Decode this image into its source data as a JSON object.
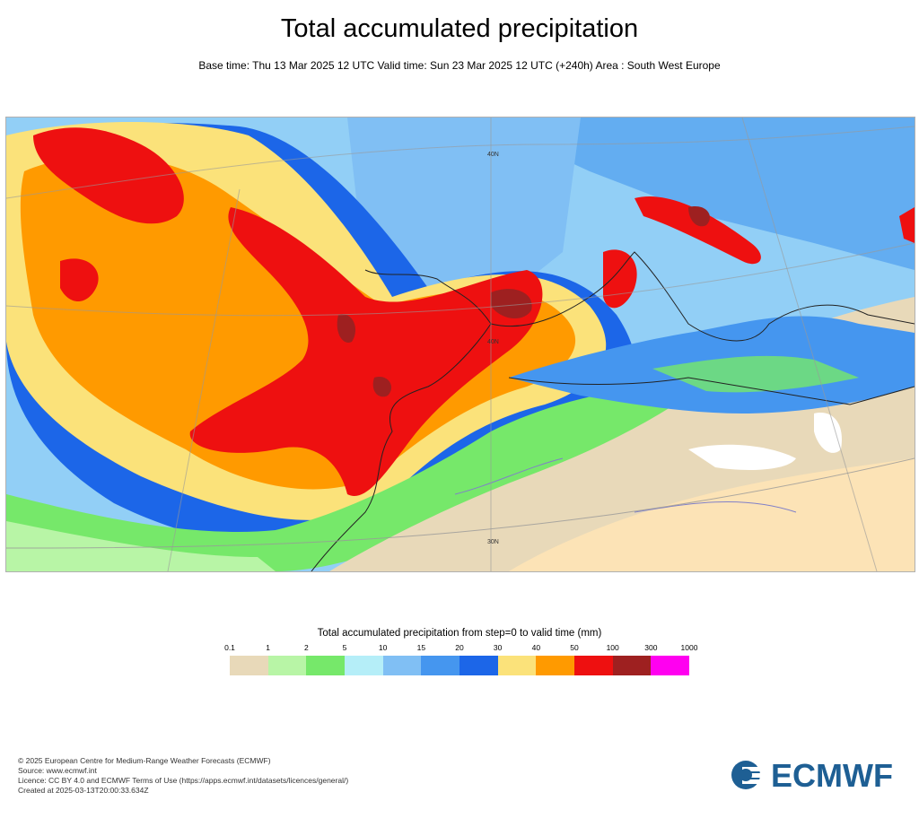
{
  "header": {
    "title": "Total accumulated precipitation",
    "subtitle": "Base time: Thu 13 Mar 2025 12 UTC Valid time: Sun 23 Mar 2025 12 UTC (+240h) Area : South West Europe"
  },
  "map": {
    "lat_labels": [
      "40N",
      "30N",
      "40N"
    ]
  },
  "legend": {
    "title": "Total accumulated precipitation from step=0 to valid time (mm)",
    "ticks": [
      "0.1",
      "1",
      "2",
      "5",
      "10",
      "15",
      "20",
      "30",
      "40",
      "50",
      "100",
      "300",
      "1000"
    ],
    "colors": [
      "#e8d9b9",
      "#b8f5a6",
      "#76e86a",
      "#b5eef8",
      "#80bff4",
      "#4596ef",
      "#1c66e8",
      "#fbe27a",
      "#ff9a00",
      "#ee1010",
      "#9e2020",
      "#ff00f0"
    ]
  },
  "footer": {
    "line1": "© 2025 European Centre for Medium-Range Weather Forecasts (ECMWF)",
    "line2": "Source: www.ecmwf.int",
    "line3": "Licence: CC BY 4.0 and ECMWF Terms of Use (https://apps.ecmwf.int/datasets/licences/general/)",
    "line4": "Created at 2025-03-13T20:00:33.634Z"
  },
  "logo": {
    "text": "ECMWF",
    "color": "#1e5f94"
  }
}
